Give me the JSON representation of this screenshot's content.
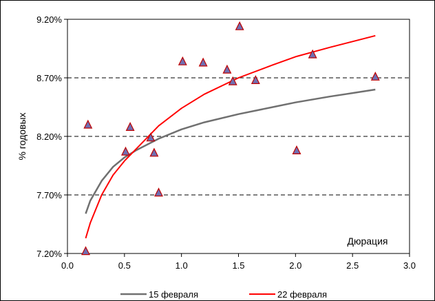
{
  "chart_data": {
    "type": "scatter",
    "xlabel": "Дюрация",
    "ylabel": "% годовых",
    "xlim": [
      0.0,
      3.0
    ],
    "ylim": [
      7.2,
      9.2
    ],
    "x_ticks": [
      "0.0",
      "0.5",
      "1.0",
      "1.5",
      "2.0",
      "2.5",
      "3.0"
    ],
    "y_ticks": [
      "7.20%",
      "7.70%",
      "8.20%",
      "8.70%",
      "9.20%"
    ],
    "gridlines": "horizontal dashed",
    "legend_position": "bottom",
    "points": {
      "x": [
        0.16,
        0.18,
        0.51,
        0.55,
        0.73,
        0.76,
        0.8,
        1.01,
        1.19,
        1.4,
        1.45,
        1.51,
        1.65,
        2.01,
        2.15,
        2.7
      ],
      "y": [
        7.22,
        8.3,
        8.07,
        8.28,
        8.19,
        8.06,
        7.72,
        8.84,
        8.83,
        8.77,
        8.67,
        9.14,
        8.68,
        8.08,
        8.9,
        8.71
      ]
    },
    "series": [
      {
        "name": "15 февраля",
        "color": "#707070",
        "x": [
          0.16,
          0.2,
          0.3,
          0.4,
          0.5,
          0.6,
          0.8,
          1.0,
          1.2,
          1.5,
          1.8,
          2.0,
          2.3,
          2.5,
          2.7
        ],
        "y": [
          7.54,
          7.65,
          7.82,
          7.94,
          8.02,
          8.08,
          8.18,
          8.26,
          8.32,
          8.39,
          8.45,
          8.49,
          8.54,
          8.57,
          8.6
        ]
      },
      {
        "name": "22 февраля",
        "color": "#ff0000",
        "x": [
          0.16,
          0.2,
          0.3,
          0.4,
          0.5,
          0.6,
          0.8,
          1.0,
          1.2,
          1.5,
          1.8,
          2.0,
          2.3,
          2.5,
          2.7
        ],
        "y": [
          7.33,
          7.46,
          7.7,
          7.87,
          7.99,
          8.09,
          8.29,
          8.44,
          8.56,
          8.7,
          8.81,
          8.88,
          8.96,
          9.01,
          9.06
        ]
      }
    ],
    "marker_fill": "#6f6fb2",
    "marker_stroke": "#c00000"
  }
}
